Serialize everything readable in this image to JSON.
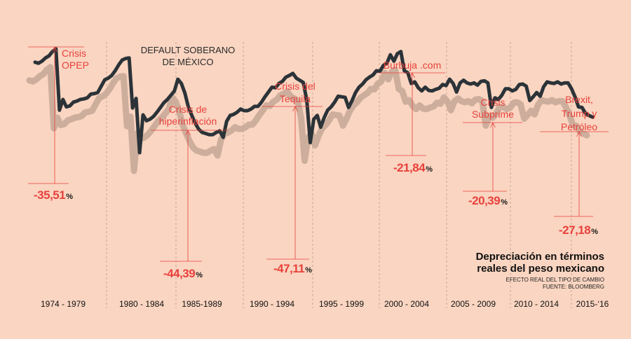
{
  "chart_data": {
    "type": "line",
    "title": "Depreciación en términos",
    "title_line2": "reales del peso mexicano",
    "subtitle": "EFECTO REAL DEL TIPO DE CAMBIO",
    "source": "FUENTE: BLOOMBERG",
    "annotation": [
      "DEFAULT SOBERANO",
      "DE MÉXICO"
    ],
    "grid": false,
    "legend": "none",
    "periods": [
      "1974 - 1979",
      "1980 - 1984",
      "1985-1989",
      "1990 - 1994",
      "1995 - 1999",
      "2000 - 2004",
      "2005 - 2009",
      "2010 - 2014",
      "2015-‘16"
    ],
    "series": [
      {
        "values": [
          120,
          118,
          122,
          128,
          132,
          140,
          145,
          30,
          50,
          36,
          38,
          45,
          47,
          50,
          51,
          53,
          60,
          61,
          63,
          75,
          87,
          90,
          95,
          104,
          115,
          124,
          127,
          128,
          34,
          52,
          -50,
          21,
          10,
          13,
          18,
          26,
          35,
          44,
          50,
          58,
          66,
          88,
          80,
          62,
          36,
          20,
          5,
          -6,
          -12,
          -14,
          -16,
          -16,
          -12,
          -9,
          -21,
          9,
          20,
          22,
          26,
          32,
          29,
          29,
          32,
          37,
          37,
          45,
          55,
          64,
          73,
          72,
          80,
          84,
          92,
          95,
          99,
          90,
          86,
          82,
          48,
          -31,
          13,
          20,
          -2,
          16,
          30,
          36,
          45,
          56,
          55,
          54,
          35,
          48,
          63,
          73,
          79,
          87,
          92,
          96,
          104,
          103,
          114,
          118,
          134,
          122,
          136,
          140,
          104,
          100,
          80,
          83,
          72,
          66,
          73,
          67,
          66,
          69,
          71,
          78,
          76,
          88,
          80,
          64,
          81,
          86,
          81,
          79,
          81,
          77,
          84,
          85,
          81,
          35,
          53,
          50,
          58,
          70,
          70,
          66,
          69,
          78,
          79,
          75,
          48,
          55,
          63,
          56,
          74,
          83,
          81,
          80,
          83,
          79,
          81,
          81,
          70,
          55,
          36,
          35,
          24,
          20,
          17
        ]
      }
    ],
    "events": [
      {
        "label": [
          "Crisis",
          "OPEP"
        ],
        "value": "-35,51"
      },
      {
        "label": [
          "Crisis de",
          "hiperinflación"
        ],
        "value": "-44,39"
      },
      {
        "label": [
          "Crisis del",
          "Tequila"
        ],
        "value": "-47,11"
      },
      {
        "label": [
          "Burbuja .com"
        ],
        "value": "-21,84"
      },
      {
        "label": [
          "Crisis",
          "Subprime"
        ],
        "value": "-20,39"
      },
      {
        "label": [
          "Brexit,",
          "Trump y",
          "Petróleo"
        ],
        "value": "-27,18"
      }
    ],
    "unit": "%",
    "colors": {
      "background": "#fad5c1",
      "line": "#2b3338",
      "shadow": "#c8aa99",
      "accent": "#e8413c"
    }
  }
}
